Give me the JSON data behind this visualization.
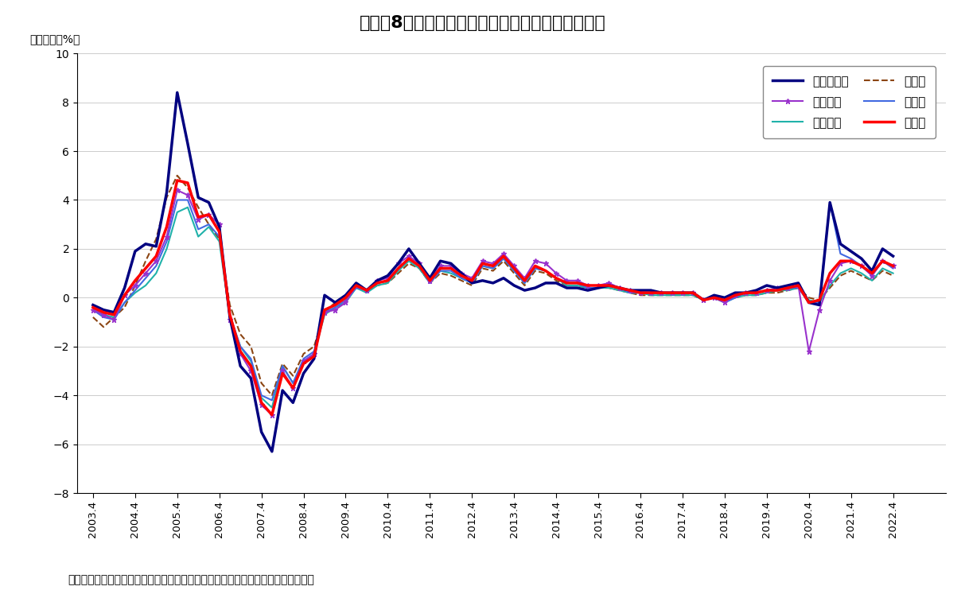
{
  "title": "図表－8　首都圏の住宅地価格（変動率、前期比）",
  "ylabel": "対前期比（%）",
  "source_text": "（出所）野村不動産ソリューションズの公表データよりニッセイ基礎研究所が作成",
  "ylim": [
    -8,
    10
  ],
  "yticks": [
    -8,
    -6,
    -4,
    -2,
    0,
    2,
    4,
    6,
    8,
    10
  ],
  "x_labels": [
    "2003.4",
    "2004.4",
    "2005.4",
    "2006.4",
    "2007.4",
    "2008.4",
    "2009.4",
    "2010.4",
    "2011.4",
    "2012.4",
    "2013.4",
    "2014.4",
    "2015.4",
    "2016.4",
    "2017.4",
    "2018.4",
    "2019.4",
    "2020.4",
    "2021.4",
    "2022.4"
  ],
  "legend_order": [
    "東京都区部",
    "東京都下",
    "神奈川県",
    "千葉県",
    "埼玉県",
    "首都圏"
  ],
  "series": {
    "東京都区部": {
      "color": "#000080",
      "linewidth": 2.5,
      "linestyle": "-",
      "marker": null,
      "zorder": 5,
      "values": [
        -0.3,
        -0.5,
        -0.6,
        0.4,
        1.9,
        2.2,
        2.1,
        4.3,
        8.4,
        6.3,
        4.1,
        3.9,
        2.9,
        -0.8,
        -2.8,
        -3.3,
        -5.5,
        -6.3,
        -3.8,
        -4.3,
        -3.1,
        -2.5,
        0.1,
        -0.2,
        0.1,
        0.6,
        0.3,
        0.7,
        0.9,
        1.4,
        2.0,
        1.4,
        0.8,
        1.5,
        1.4,
        1.0,
        0.6,
        0.7,
        0.6,
        0.8,
        0.5,
        0.3,
        0.4,
        0.6,
        0.6,
        0.4,
        0.4,
        0.3,
        0.4,
        0.5,
        0.4,
        0.3,
        0.3,
        0.3,
        0.2,
        0.2,
        0.2,
        0.2,
        -0.1,
        0.1,
        0.0,
        0.2,
        0.2,
        0.3,
        0.5,
        0.4,
        0.5,
        0.6,
        -0.2,
        -0.3,
        3.9,
        2.2,
        1.9,
        1.6,
        1.1,
        2.0,
        1.7
      ]
    },
    "東京都下": {
      "color": "#9932CC",
      "linewidth": 1.5,
      "linestyle": "-",
      "marker": "*",
      "markersize": 5,
      "zorder": 4,
      "values": [
        -0.5,
        -0.7,
        -0.9,
        0.1,
        0.5,
        1.0,
        1.5,
        2.5,
        4.4,
        4.2,
        3.2,
        3.4,
        3.0,
        -0.9,
        -2.3,
        -3.0,
        -4.4,
        -4.8,
        -3.0,
        -3.7,
        -2.6,
        -2.3,
        -0.6,
        -0.5,
        -0.2,
        0.5,
        0.3,
        0.7,
        0.8,
        1.4,
        1.7,
        1.4,
        0.7,
        1.3,
        1.3,
        1.0,
        0.8,
        1.5,
        1.4,
        1.8,
        1.3,
        0.8,
        1.5,
        1.4,
        1.0,
        0.7,
        0.7,
        0.5,
        0.5,
        0.6,
        0.4,
        0.3,
        0.2,
        0.2,
        0.2,
        0.2,
        0.2,
        0.2,
        -0.1,
        0.0,
        -0.2,
        0.1,
        0.2,
        0.2,
        0.3,
        0.4,
        0.4,
        0.5,
        -2.2,
        -0.5,
        0.7,
        1.4,
        1.5,
        1.3,
        0.9,
        1.5,
        1.3
      ]
    },
    "神奈川県": {
      "color": "#20B2AA",
      "linewidth": 1.5,
      "linestyle": "-",
      "marker": null,
      "zorder": 3,
      "values": [
        -0.4,
        -0.7,
        -0.8,
        -0.2,
        0.2,
        0.5,
        1.0,
        2.0,
        3.5,
        3.7,
        2.5,
        2.9,
        2.3,
        -0.8,
        -2.0,
        -2.6,
        -4.1,
        -4.5,
        -2.8,
        -3.5,
        -2.6,
        -2.3,
        -0.7,
        -0.4,
        -0.2,
        0.4,
        0.2,
        0.5,
        0.6,
        1.1,
        1.5,
        1.2,
        0.6,
        1.1,
        1.0,
        0.8,
        0.6,
        1.3,
        1.2,
        1.6,
        1.1,
        0.6,
        1.2,
        1.1,
        0.8,
        0.5,
        0.5,
        0.4,
        0.4,
        0.4,
        0.3,
        0.2,
        0.2,
        0.1,
        0.1,
        0.1,
        0.1,
        0.1,
        -0.1,
        0.0,
        -0.2,
        0.0,
        0.1,
        0.1,
        0.2,
        0.3,
        0.3,
        0.4,
        -0.1,
        -0.2,
        0.5,
        1.0,
        1.2,
        1.0,
        0.7,
        1.2,
        1.0
      ]
    },
    "千葉県": {
      "color": "#8B4513",
      "linewidth": 1.5,
      "linestyle": "--",
      "marker": null,
      "zorder": 2,
      "values": [
        -0.8,
        -1.2,
        -0.8,
        -0.4,
        0.5,
        1.5,
        2.4,
        4.1,
        5.0,
        4.5,
        3.7,
        3.0,
        2.4,
        -0.3,
        -1.5,
        -2.0,
        -3.5,
        -4.0,
        -2.7,
        -3.2,
        -2.3,
        -2.0,
        -0.6,
        -0.2,
        0.1,
        0.5,
        0.3,
        0.5,
        0.6,
        1.0,
        1.4,
        1.2,
        0.6,
        1.0,
        0.9,
        0.7,
        0.5,
        1.2,
        1.1,
        1.5,
        1.0,
        0.5,
        1.1,
        1.0,
        0.7,
        0.5,
        0.5,
        0.4,
        0.4,
        0.4,
        0.3,
        0.2,
        0.1,
        0.1,
        0.1,
        0.1,
        0.1,
        0.1,
        -0.1,
        0.0,
        -0.1,
        0.0,
        0.1,
        0.1,
        0.2,
        0.2,
        0.3,
        0.4,
        0.0,
        -0.1,
        0.4,
        0.9,
        1.1,
        0.9,
        0.7,
        1.1,
        0.9
      ]
    },
    "埼玉県": {
      "color": "#4169E1",
      "linewidth": 1.5,
      "linestyle": "-",
      "marker": null,
      "zorder": 3,
      "values": [
        -0.5,
        -0.8,
        -0.9,
        -0.2,
        0.3,
        0.8,
        1.3,
        2.3,
        4.0,
        4.0,
        2.8,
        3.0,
        2.5,
        -0.7,
        -2.0,
        -2.5,
        -4.0,
        -4.2,
        -2.8,
        -3.5,
        -2.5,
        -2.2,
        -0.6,
        -0.4,
        -0.1,
        0.4,
        0.3,
        0.6,
        0.7,
        1.2,
        1.6,
        1.3,
        0.6,
        1.1,
        1.1,
        0.8,
        0.6,
        1.3,
        1.2,
        1.6,
        1.1,
        0.6,
        1.2,
        1.1,
        0.8,
        0.6,
        0.6,
        0.4,
        0.4,
        0.5,
        0.4,
        0.2,
        0.2,
        0.2,
        0.2,
        0.2,
        0.2,
        0.2,
        -0.1,
        0.0,
        -0.2,
        0.0,
        0.2,
        0.2,
        0.3,
        0.3,
        0.4,
        0.4,
        -0.2,
        -0.2,
        3.9,
        1.8,
        1.6,
        1.3,
        0.9,
        1.5,
        1.2
      ]
    },
    "首都圏": {
      "color": "#FF0000",
      "linewidth": 2.5,
      "linestyle": "-",
      "marker": null,
      "zorder": 6,
      "values": [
        -0.4,
        -0.6,
        -0.7,
        0.1,
        0.7,
        1.2,
        1.7,
        2.9,
        4.8,
        4.7,
        3.3,
        3.4,
        2.7,
        -0.7,
        -2.2,
        -2.8,
        -4.3,
        -4.8,
        -3.1,
        -3.7,
        -2.7,
        -2.4,
        -0.5,
        -0.3,
        0.0,
        0.5,
        0.3,
        0.6,
        0.7,
        1.2,
        1.6,
        1.3,
        0.7,
        1.2,
        1.2,
        0.9,
        0.7,
        1.4,
        1.3,
        1.7,
        1.2,
        0.7,
        1.3,
        1.1,
        0.8,
        0.6,
        0.6,
        0.5,
        0.5,
        0.5,
        0.4,
        0.3,
        0.2,
        0.2,
        0.2,
        0.2,
        0.2,
        0.2,
        -0.1,
        0.0,
        -0.1,
        0.1,
        0.2,
        0.2,
        0.3,
        0.3,
        0.4,
        0.5,
        -0.2,
        -0.1,
        1.0,
        1.5,
        1.5,
        1.3,
        1.0,
        1.5,
        1.3
      ]
    }
  }
}
